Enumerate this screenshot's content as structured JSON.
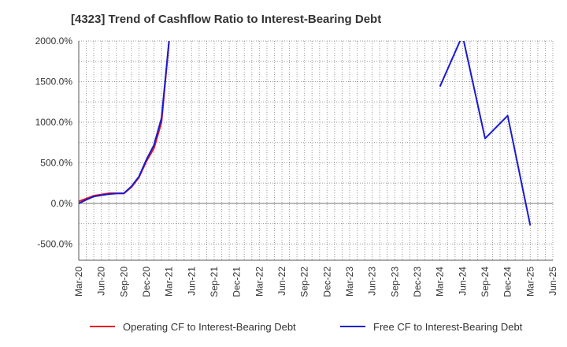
{
  "chart_data": {
    "type": "line",
    "title": "[4323]  Trend of Cashflow Ratio to Interest-Bearing Debt",
    "xlabel": "",
    "ylabel": "",
    "ylim": [
      -700,
      2000
    ],
    "yticks": [
      2000,
      1500,
      1000,
      500,
      0,
      -500
    ],
    "ytick_labels": [
      "2000.0%",
      "1500.0%",
      "1000.0%",
      "500.0%",
      "0.0%",
      "-500.0%"
    ],
    "grid": true,
    "legend_position": "bottom",
    "x_tick_labels": [
      "Mar-20",
      "Jun-20",
      "Sep-20",
      "Dec-20",
      "Mar-21",
      "Jun-21",
      "Sep-21",
      "Dec-21",
      "Mar-22",
      "Jun-22",
      "Sep-22",
      "Dec-22",
      "Mar-23",
      "Jun-23",
      "Sep-23",
      "Dec-23",
      "Mar-24",
      "Jun-24",
      "Sep-24",
      "Dec-24",
      "Mar-25",
      "Jun-25"
    ],
    "series": [
      {
        "name": "Operating CF to Interest-Bearing Debt",
        "color": "#e8141e",
        "points": [
          [
            0,
            25
          ],
          [
            1,
            60
          ],
          [
            2,
            95
          ],
          [
            3,
            110
          ],
          [
            4,
            125
          ],
          [
            5,
            125
          ],
          [
            6,
            122
          ],
          [
            7,
            200
          ],
          [
            8,
            320
          ],
          [
            9,
            520
          ],
          [
            10,
            680
          ],
          [
            11,
            1000
          ],
          [
            12,
            2000
          ]
        ]
      },
      {
        "name": "Free CF to Interest-Bearing Debt",
        "color": "#1a1ad2",
        "points": [
          [
            0,
            0
          ],
          [
            1,
            45
          ],
          [
            2,
            85
          ],
          [
            3,
            100
          ],
          [
            4,
            115
          ],
          [
            5,
            122
          ],
          [
            6,
            125
          ],
          [
            7,
            210
          ],
          [
            8,
            330
          ],
          [
            9,
            540
          ],
          [
            10,
            720
          ],
          [
            11,
            1050
          ],
          [
            12,
            2000
          ]
        ],
        "points_late": [
          [
            48,
            1440
          ],
          [
            51,
            2070
          ],
          [
            54,
            800
          ],
          [
            57,
            1080
          ],
          [
            60,
            -270
          ]
        ]
      }
    ]
  }
}
